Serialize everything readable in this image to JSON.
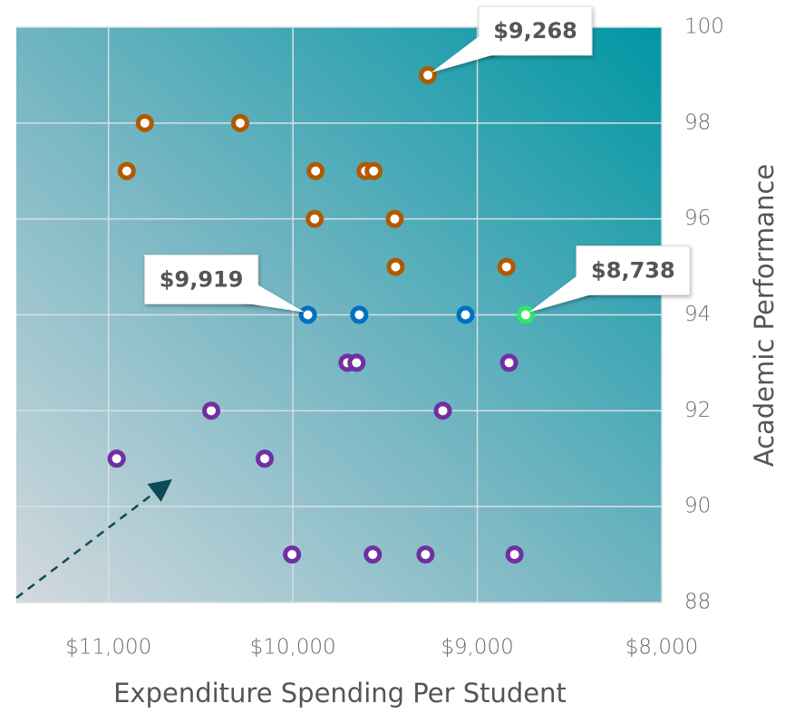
{
  "chart_data": {
    "type": "scatter",
    "xlabel": "Expenditure Spending Per Student",
    "ylabel": "Academic Performance",
    "xlim": [
      11500,
      8000
    ],
    "ylim": [
      88,
      100
    ],
    "xticks": [
      {
        "value": 11000,
        "label": "$11,000"
      },
      {
        "value": 10000,
        "label": "$10,000"
      },
      {
        "value": 9000,
        "label": "$9,000"
      },
      {
        "value": 8000,
        "label": "$8,000"
      }
    ],
    "yticks": [
      88,
      90,
      92,
      94,
      96,
      98,
      100
    ],
    "grid": true,
    "series": [
      {
        "color": "#b05a00",
        "x": [
          9268,
          10803,
          10286,
          10901,
          9877,
          9606,
          9562,
          9882,
          9448,
          9443,
          8842
        ],
        "values": [
          99,
          98,
          98,
          97,
          97,
          97,
          97,
          96,
          96,
          95,
          95
        ],
        "value_labels": [
          "$9,268",
          null,
          null,
          null,
          null,
          null,
          null,
          null,
          null,
          null,
          null
        ]
      },
      {
        "color": "#0070c0",
        "x": [
          9919,
          9640,
          9064
        ],
        "values": [
          94,
          94,
          94
        ],
        "value_labels": [
          "$9,919",
          null,
          null
        ]
      },
      {
        "color": "#2ee86a",
        "x": [
          8738
        ],
        "values": [
          94
        ],
        "value_labels": [
          "$8,738"
        ]
      },
      {
        "color": "#7030a0",
        "x": [
          9704,
          9655,
          8828,
          10443,
          9187,
          10956,
          10153,
          10005,
          9567,
          9281,
          8798
        ],
        "values": [
          93,
          93,
          93,
          92,
          92,
          91,
          91,
          89,
          89,
          89,
          89
        ]
      }
    ]
  }
}
